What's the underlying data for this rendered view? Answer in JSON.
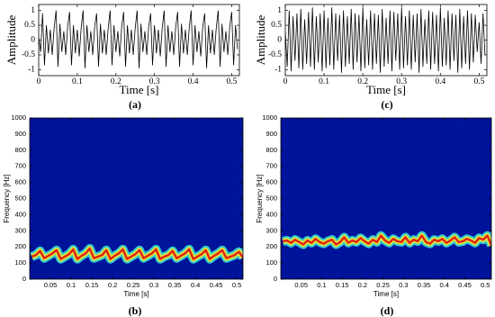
{
  "chart_data": [
    {
      "type": "wave",
      "label": "(a)",
      "x_label": "Time [s]",
      "y_label": "Amplitude",
      "color": "#000000",
      "xlim": [
        0,
        0.52
      ],
      "xticks": [
        0,
        0.1,
        0.2,
        0.3,
        0.4,
        0.5
      ],
      "ylim": [
        -1.2,
        1.2
      ],
      "yticks": [
        -1,
        -0.5,
        0,
        0.5,
        1
      ],
      "x": [
        0,
        0.005,
        0.01,
        0.015,
        0.02,
        0.025,
        0.03,
        0.035,
        0.04,
        0.045,
        0.05,
        0.055,
        0.06,
        0.065,
        0.07,
        0.075,
        0.08,
        0.085,
        0.09,
        0.095,
        0.1,
        0.105,
        0.11,
        0.115,
        0.12,
        0.125,
        0.13,
        0.135,
        0.14,
        0.145,
        0.15,
        0.155,
        0.16,
        0.165,
        0.17,
        0.175,
        0.18,
        0.185,
        0.19,
        0.195,
        0.2,
        0.205,
        0.21,
        0.215,
        0.22,
        0.225,
        0.23,
        0.235,
        0.24,
        0.245,
        0.25,
        0.255,
        0.26,
        0.265,
        0.27,
        0.275,
        0.28,
        0.285,
        0.29,
        0.295,
        0.3,
        0.305,
        0.31,
        0.315,
        0.32,
        0.325,
        0.33,
        0.335,
        0.34,
        0.345,
        0.35,
        0.355,
        0.36,
        0.365,
        0.37,
        0.375,
        0.38,
        0.385,
        0.39,
        0.395,
        0.4,
        0.405,
        0.41,
        0.415,
        0.42,
        0.425,
        0.43,
        0.435,
        0.44,
        0.445,
        0.45,
        0.455,
        0.46,
        0.465,
        0.47,
        0.475,
        0.48,
        0.485,
        0.49,
        0.495,
        0.5,
        0.505,
        0.51,
        0.515
      ],
      "values": [
        0.1,
        -0.4,
        0.9,
        -0.85,
        0.5,
        -0.45,
        0.35,
        -0.5,
        0.4,
        1.0,
        -0.9,
        0.55,
        -0.4,
        0.3,
        -0.5,
        0.45,
        0.95,
        -0.85,
        0.5,
        -0.45,
        0.35,
        -0.55,
        0.4,
        1.0,
        -0.95,
        0.5,
        -0.4,
        0.3,
        -0.5,
        0.45,
        0.9,
        -0.9,
        0.55,
        -0.45,
        0.35,
        -0.5,
        0.4,
        1.0,
        -0.85,
        0.5,
        -0.4,
        0.3,
        -0.55,
        0.45,
        0.95,
        -0.9,
        0.5,
        -0.45,
        0.35,
        -0.5,
        0.4,
        1.0,
        -0.95,
        0.55,
        -0.4,
        0.3,
        -0.5,
        0.45,
        0.9,
        -0.85,
        0.5,
        -0.45,
        0.35,
        -0.55,
        0.4,
        1.0,
        -0.9,
        0.5,
        -0.4,
        0.3,
        -0.5,
        0.45,
        0.95,
        -0.9,
        0.55,
        -0.45,
        0.35,
        -0.5,
        0.4,
        1.0,
        -0.85,
        0.5,
        -0.4,
        0.3,
        -0.55,
        0.45,
        0.9,
        -0.95,
        0.5,
        -0.45,
        0.35,
        -0.5,
        0.4,
        1.0,
        -0.9,
        0.55,
        -0.4,
        0.3,
        -0.5,
        0.45,
        0.95,
        -0.85,
        0.5,
        -0.3
      ]
    },
    {
      "type": "wave",
      "label": "(c)",
      "x_label": "Time [s]",
      "y_label": "Amplitude",
      "color": "#000000",
      "xlim": [
        0,
        0.52
      ],
      "xticks": [
        0,
        0.1,
        0.2,
        0.3,
        0.4,
        0.5
      ],
      "ylim": [
        -1.2,
        1.2
      ],
      "yticks": [
        -1,
        -0.5,
        0,
        0.5,
        1
      ],
      "x": [
        0,
        0.005,
        0.01,
        0.015,
        0.02,
        0.025,
        0.03,
        0.035,
        0.04,
        0.045,
        0.05,
        0.055,
        0.06,
        0.065,
        0.07,
        0.075,
        0.08,
        0.085,
        0.09,
        0.095,
        0.1,
        0.105,
        0.11,
        0.115,
        0.12,
        0.125,
        0.13,
        0.135,
        0.14,
        0.145,
        0.15,
        0.155,
        0.16,
        0.165,
        0.17,
        0.175,
        0.18,
        0.185,
        0.19,
        0.195,
        0.2,
        0.205,
        0.21,
        0.215,
        0.22,
        0.225,
        0.23,
        0.235,
        0.24,
        0.245,
        0.25,
        0.255,
        0.26,
        0.265,
        0.27,
        0.275,
        0.28,
        0.285,
        0.29,
        0.295,
        0.3,
        0.305,
        0.31,
        0.315,
        0.32,
        0.325,
        0.33,
        0.335,
        0.34,
        0.345,
        0.35,
        0.355,
        0.36,
        0.365,
        0.37,
        0.375,
        0.38,
        0.385,
        0.39,
        0.395,
        0.4,
        0.405,
        0.41,
        0.415,
        0.42,
        0.425,
        0.43,
        0.435,
        0.44,
        0.445,
        0.45,
        0.455,
        0.46,
        0.465,
        0.47,
        0.475,
        0.48,
        0.485,
        0.49,
        0.495,
        0.5,
        0.505,
        0.51,
        0.515
      ],
      "values": [
        0.3,
        -0.9,
        1.0,
        -1.05,
        0.8,
        -0.7,
        0.9,
        -0.95,
        1.05,
        -1.0,
        0.7,
        -0.8,
        0.95,
        -0.9,
        1.1,
        -1.0,
        0.8,
        -0.75,
        0.9,
        -1.05,
        1.0,
        -0.95,
        0.75,
        -0.85,
        1.1,
        -1.0,
        0.9,
        -0.7,
        0.85,
        -1.1,
        1.0,
        -0.9,
        0.8,
        -0.8,
        1.05,
        -1.0,
        0.9,
        -0.75,
        0.85,
        -1.05,
        1.1,
        -0.95,
        0.7,
        -0.85,
        1.0,
        -1.0,
        0.9,
        -0.8,
        0.85,
        -1.1,
        1.05,
        -0.9,
        0.75,
        -0.8,
        1.0,
        -1.05,
        0.95,
        -0.7,
        0.9,
        -1.0,
        1.1,
        -0.95,
        0.8,
        -0.85,
        1.0,
        -1.0,
        0.85,
        -0.75,
        0.9,
        -1.1,
        1.05,
        -0.9,
        0.7,
        -0.8,
        1.0,
        -1.0,
        0.95,
        -0.8,
        0.85,
        -1.05,
        1.1,
        -0.9,
        0.75,
        -0.85,
        1.0,
        -1.0,
        0.9,
        -0.7,
        0.85,
        -1.1,
        1.05,
        -0.95,
        0.8,
        -0.8,
        1.0,
        -1.0,
        0.9,
        -0.75,
        0.85,
        -0.4,
        0.6,
        -0.8,
        0.9,
        -0.5
      ]
    },
    {
      "type": "ridge",
      "label": "(b)",
      "x_label": "Time [s]",
      "y_label": "Frequency [Hz]",
      "color": "#e01010",
      "background": "#00139b",
      "xlim": [
        0,
        0.515
      ],
      "xticks": [
        0.05,
        0.1,
        0.15,
        0.2,
        0.25,
        0.3,
        0.35,
        0.4,
        0.45,
        0.5
      ],
      "ylim": [
        0,
        1000
      ],
      "yticks": [
        0,
        100,
        200,
        300,
        400,
        500,
        600,
        700,
        800,
        900,
        1000
      ],
      "x": [
        0.005,
        0.015,
        0.025,
        0.035,
        0.045,
        0.055,
        0.065,
        0.075,
        0.085,
        0.095,
        0.105,
        0.115,
        0.125,
        0.135,
        0.145,
        0.155,
        0.165,
        0.175,
        0.185,
        0.195,
        0.205,
        0.215,
        0.225,
        0.235,
        0.245,
        0.255,
        0.265,
        0.275,
        0.285,
        0.295,
        0.305,
        0.315,
        0.325,
        0.335,
        0.345,
        0.355,
        0.365,
        0.375,
        0.385,
        0.395,
        0.405,
        0.415,
        0.425,
        0.435,
        0.445,
        0.455,
        0.465,
        0.475,
        0.485,
        0.495,
        0.505,
        0.515
      ],
      "values": [
        140,
        150,
        175,
        130,
        145,
        160,
        180,
        125,
        140,
        155,
        185,
        125,
        145,
        160,
        190,
        130,
        140,
        150,
        180,
        125,
        145,
        160,
        185,
        125,
        140,
        155,
        180,
        130,
        145,
        160,
        185,
        125,
        140,
        150,
        175,
        130,
        145,
        160,
        185,
        125,
        140,
        155,
        180,
        125,
        145,
        160,
        180,
        130,
        140,
        150,
        170,
        135
      ]
    },
    {
      "type": "ridge",
      "label": "(d)",
      "x_label": "Time [s]",
      "y_label": "Frequency [Hz]",
      "color": "#e01010",
      "background": "#00139b",
      "xlim": [
        0,
        0.515
      ],
      "xticks": [
        0.05,
        0.1,
        0.15,
        0.2,
        0.25,
        0.3,
        0.35,
        0.4,
        0.45,
        0.5
      ],
      "ylim": [
        0,
        1000
      ],
      "yticks": [
        0,
        100,
        200,
        300,
        400,
        500,
        600,
        700,
        800,
        900,
        1000
      ],
      "x": [
        0.005,
        0.015,
        0.025,
        0.035,
        0.045,
        0.055,
        0.065,
        0.075,
        0.085,
        0.095,
        0.105,
        0.115,
        0.125,
        0.135,
        0.145,
        0.155,
        0.165,
        0.175,
        0.185,
        0.195,
        0.205,
        0.215,
        0.225,
        0.235,
        0.245,
        0.255,
        0.265,
        0.275,
        0.285,
        0.295,
        0.305,
        0.315,
        0.325,
        0.335,
        0.345,
        0.355,
        0.365,
        0.375,
        0.385,
        0.395,
        0.405,
        0.415,
        0.425,
        0.435,
        0.445,
        0.455,
        0.465,
        0.475,
        0.485,
        0.495,
        0.505,
        0.515
      ],
      "values": [
        235,
        240,
        225,
        245,
        230,
        215,
        240,
        225,
        250,
        230,
        220,
        235,
        245,
        215,
        230,
        260,
        225,
        240,
        230,
        255,
        235,
        220,
        245,
        230,
        270,
        240,
        225,
        250,
        235,
        230,
        260,
        225,
        245,
        235,
        270,
        230,
        220,
        245,
        235,
        250,
        225,
        240,
        260,
        230,
        235,
        250,
        240,
        225,
        255,
        245,
        270,
        210
      ]
    }
  ]
}
